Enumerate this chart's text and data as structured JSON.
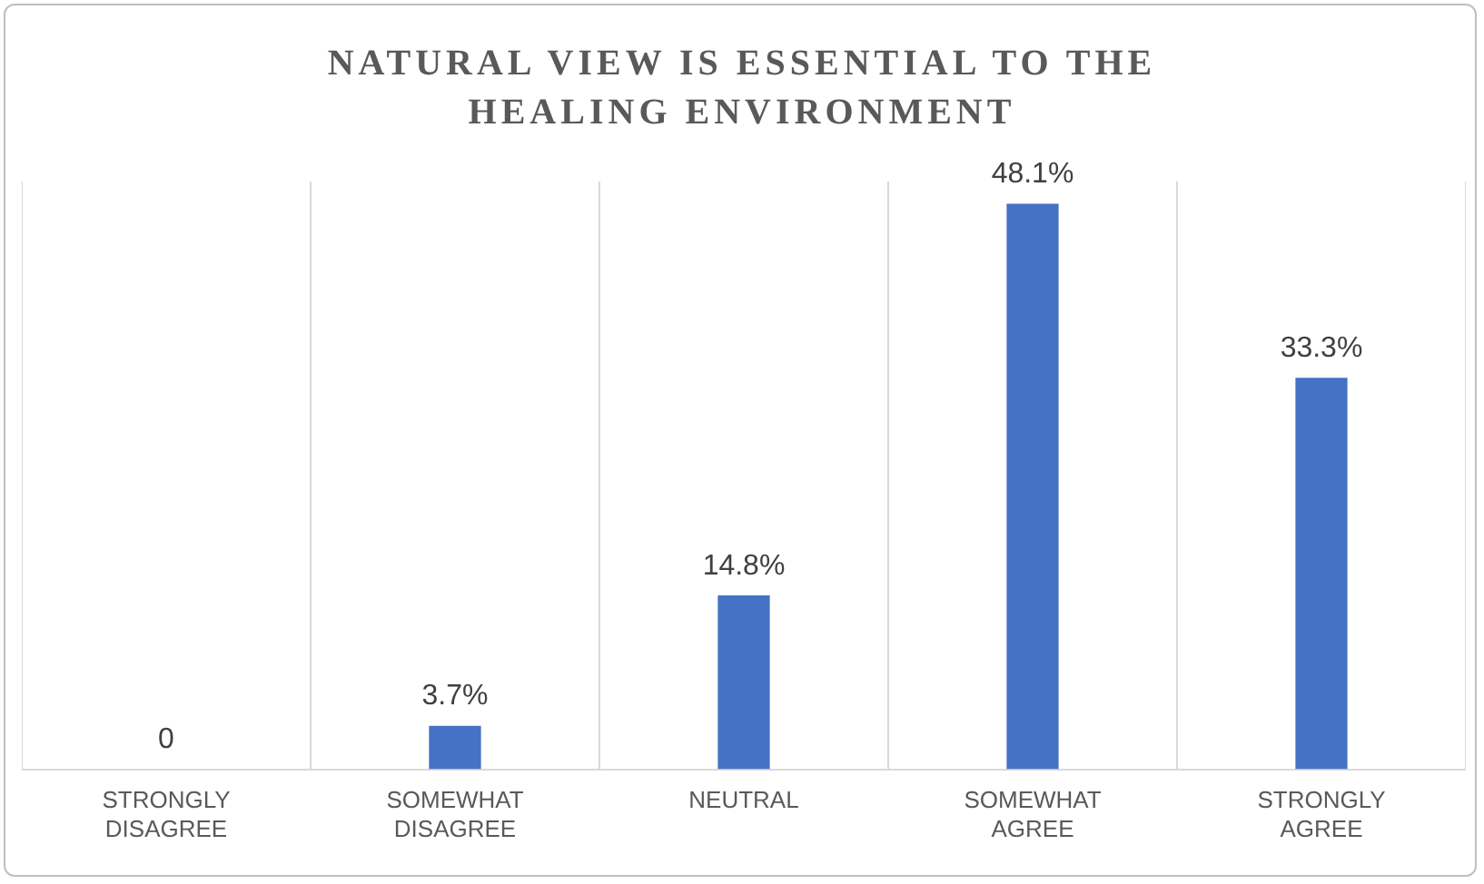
{
  "chart_data": {
    "type": "bar",
    "title": "NATURAL VIEW IS ESSENTIAL TO THE HEALING ENVIRONMENT",
    "categories": [
      "STRONGLY DISAGREE",
      "SOMEWHAT DISAGREE",
      "NEUTRAL",
      "SOMEWHAT AGREE",
      "STRONGLY AGREE"
    ],
    "values": [
      0,
      3.7,
      14.8,
      48.1,
      33.3
    ],
    "value_labels": [
      "0",
      "3.7%",
      "14.8%",
      "48.1%",
      "33.3%"
    ],
    "color": "#4472c4",
    "grid": "x",
    "legend": false,
    "tick_labels": "x"
  }
}
